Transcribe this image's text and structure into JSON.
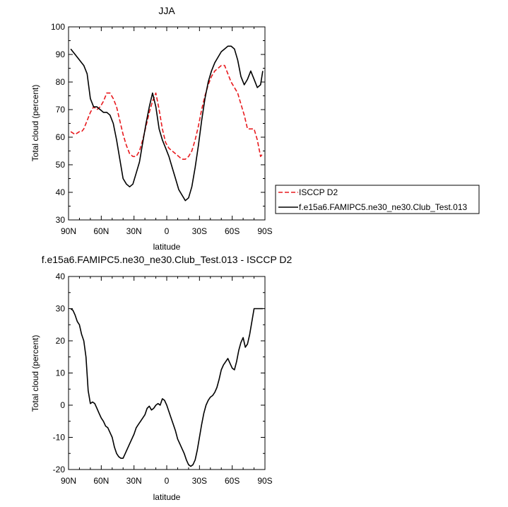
{
  "chart_data": [
    {
      "type": "line",
      "title": "JJA",
      "xlabel": "latitude",
      "ylabel": "Total cloud (percent)",
      "xlim": [
        90,
        -90
      ],
      "ylim": [
        30,
        100
      ],
      "x_tick_labels": [
        "90N",
        "60N",
        "30N",
        "0",
        "30S",
        "60S",
        "90S"
      ],
      "y_tick_labels": [
        "30",
        "40",
        "50",
        "60",
        "70",
        "80",
        "90",
        "100"
      ],
      "legend_position": "right",
      "series": [
        {
          "name": "ISCCP D2",
          "color": "#e8191d",
          "dash": "dashed",
          "x": [
            88,
            84,
            80,
            78,
            76,
            73,
            70,
            67,
            64,
            61,
            58,
            55,
            52,
            49,
            46,
            43,
            40,
            37,
            34,
            31,
            28,
            25,
            22,
            19,
            16,
            13,
            10,
            7,
            4,
            1,
            -2,
            -5,
            -8,
            -11,
            -14,
            -17,
            -20,
            -23,
            -26,
            -29,
            -32,
            -35,
            -38,
            -41,
            -44,
            -47,
            -50,
            -53,
            -56,
            -59,
            -62,
            -65,
            -68,
            -71,
            -74,
            -77,
            -80,
            -83,
            -86,
            -88
          ],
          "y": [
            62,
            61,
            62,
            62,
            63,
            66,
            69,
            71,
            70,
            71,
            73,
            76,
            76,
            74,
            71,
            66,
            61,
            57,
            54,
            53,
            53,
            55,
            59,
            64,
            69,
            73,
            76,
            70,
            63,
            58,
            56,
            55,
            54,
            53,
            52,
            52,
            53,
            55,
            59,
            64,
            70,
            75,
            79,
            82,
            84,
            85,
            86,
            86,
            83,
            80,
            78,
            76,
            72,
            68,
            63,
            63,
            63,
            59,
            53,
            54
          ]
        },
        {
          "name": "f.e15a6.FAMIPC5.ne30_ne30.Club_Test.013",
          "color": "#000000",
          "dash": "solid",
          "x": [
            88,
            84,
            80,
            78,
            76,
            73,
            70,
            67,
            64,
            61,
            58,
            55,
            52,
            49,
            46,
            43,
            40,
            37,
            34,
            31,
            28,
            25,
            22,
            19,
            16,
            13,
            10,
            7,
            4,
            1,
            -2,
            -5,
            -8,
            -11,
            -14,
            -17,
            -20,
            -23,
            -26,
            -29,
            -32,
            -35,
            -38,
            -41,
            -44,
            -47,
            -50,
            -53,
            -56,
            -59,
            -62,
            -65,
            -68,
            -71,
            -74,
            -77,
            -80,
            -83,
            -86,
            -88
          ],
          "y": [
            92,
            90,
            88,
            87,
            86,
            83,
            74,
            71,
            71,
            70,
            69,
            69,
            68,
            65,
            59,
            52,
            45,
            43,
            42,
            43,
            47,
            51,
            58,
            65,
            71,
            76,
            71,
            63,
            59,
            56,
            53,
            49,
            45,
            41,
            39,
            37,
            38,
            42,
            49,
            57,
            66,
            74,
            80,
            84,
            87,
            89,
            91,
            92,
            93,
            93,
            92,
            88,
            82,
            79,
            81,
            84,
            81,
            78,
            79,
            84
          ]
        }
      ]
    },
    {
      "type": "line",
      "title": "f.e15a6.FAMIPC5.ne30_ne30.Club_Test.013 - ISCCP D2",
      "xlabel": "latitude",
      "ylabel": "Total cloud (percent)",
      "xlim": [
        90,
        -90
      ],
      "ylim": [
        -20,
        40
      ],
      "x_tick_labels": [
        "90N",
        "60N",
        "30N",
        "0",
        "30S",
        "60S",
        "90S"
      ],
      "y_tick_labels": [
        "-20",
        "-10",
        "0",
        "10",
        "20",
        "30",
        "40"
      ],
      "series": [
        {
          "color": "#000000",
          "dash": "solid",
          "x": [
            88,
            86,
            84,
            82,
            80,
            78,
            76,
            74,
            72,
            70,
            68,
            66,
            64,
            62,
            60,
            58,
            56,
            54,
            52,
            50,
            48,
            46,
            44,
            42,
            40,
            38,
            36,
            34,
            32,
            30,
            28,
            26,
            24,
            22,
            20,
            18,
            16,
            14,
            12,
            10,
            8,
            6,
            4,
            2,
            0,
            -2,
            -4,
            -6,
            -8,
            -10,
            -12,
            -14,
            -16,
            -18,
            -20,
            -22,
            -24,
            -26,
            -28,
            -30,
            -32,
            -34,
            -36,
            -38,
            -40,
            -42,
            -44,
            -46,
            -48,
            -50,
            -52,
            -54,
            -56,
            -58,
            -60,
            -62,
            -64,
            -66,
            -68,
            -70,
            -72,
            -74,
            -76,
            -78,
            -80,
            -82,
            -84,
            -86,
            -88
          ],
          "y": [
            30,
            29.5,
            28,
            26,
            25,
            22,
            20,
            15,
            4.5,
            0.5,
            1,
            0.5,
            -1,
            -2.5,
            -4,
            -5,
            -6.5,
            -7,
            -8.5,
            -10,
            -13,
            -15,
            -16,
            -16.5,
            -16.5,
            -15,
            -13.5,
            -12,
            -10.5,
            -9,
            -7,
            -6,
            -5,
            -4,
            -3,
            -1,
            -0.3,
            -1.5,
            -1,
            0,
            0.5,
            0,
            2,
            1.5,
            0,
            -2,
            -4,
            -6,
            -8,
            -10.5,
            -12,
            -13.5,
            -15,
            -17,
            -18.5,
            -19,
            -18.5,
            -17,
            -14,
            -10,
            -6,
            -2.5,
            0,
            1.5,
            2.5,
            3,
            4,
            5.5,
            8,
            11,
            12.5,
            13.5,
            14.5,
            13,
            11.5,
            11,
            13.5,
            17,
            19.5,
            21,
            18,
            19,
            22,
            26,
            30,
            30,
            30,
            30,
            30
          ]
        }
      ]
    }
  ]
}
